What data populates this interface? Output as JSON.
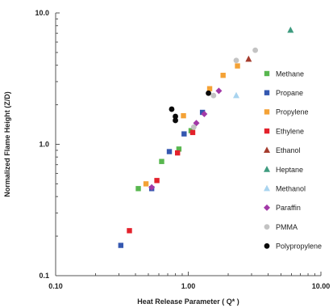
{
  "chart_data": {
    "type": "scatter",
    "x_scale": "log",
    "y_scale": "log",
    "xlim": [
      0.1,
      10
    ],
    "ylim": [
      0.1,
      10
    ],
    "xlabel": "Heat Release Parameter  ( Q* )",
    "ylabel": "Normalized Flame Height (Z/D)",
    "x_ticks": [
      0.1,
      1,
      10
    ],
    "x_tick_labels": [
      "0.10",
      "1.00",
      "10.00"
    ],
    "y_ticks": [
      0.1,
      1,
      10
    ],
    "y_tick_labels": [
      "0.1",
      "1.0",
      "10.0"
    ],
    "grid": false,
    "legend_position": "right",
    "series": [
      {
        "name": "Methane",
        "marker": "square",
        "color": "#58b74f",
        "points": [
          [
            0.42,
            0.46
          ],
          [
            0.63,
            0.74
          ],
          [
            0.85,
            0.92
          ],
          [
            1.05,
            1.27
          ]
        ]
      },
      {
        "name": "Propane",
        "marker": "square",
        "color": "#3558b0",
        "points": [
          [
            0.31,
            0.17
          ],
          [
            0.53,
            0.46
          ],
          [
            0.72,
            0.88
          ],
          [
            0.93,
            1.2
          ],
          [
            1.28,
            1.75
          ]
        ]
      },
      {
        "name": "Propylene",
        "marker": "square",
        "color": "#f4a236",
        "points": [
          [
            0.48,
            0.5
          ],
          [
            0.92,
            1.65
          ],
          [
            1.45,
            2.65
          ],
          [
            1.83,
            3.35
          ],
          [
            2.35,
            3.95
          ]
        ]
      },
      {
        "name": "Ethylene",
        "marker": "square",
        "color": "#e3212b",
        "points": [
          [
            0.36,
            0.22
          ],
          [
            0.58,
            0.53
          ],
          [
            0.83,
            0.86
          ],
          [
            1.08,
            1.23
          ]
        ]
      },
      {
        "name": "Ethanol",
        "marker": "triangle",
        "color": "#a53c2e",
        "points": [
          [
            2.85,
            4.45
          ]
        ]
      },
      {
        "name": "Heptane",
        "marker": "triangle",
        "color": "#3e9b7f",
        "points": [
          [
            5.9,
            7.4
          ]
        ]
      },
      {
        "name": "Methanol",
        "marker": "triangle",
        "color": "#a9d4ef",
        "points": [
          [
            2.3,
            2.35
          ]
        ]
      },
      {
        "name": "Paraffin",
        "marker": "diamond",
        "color": "#a239a7",
        "points": [
          [
            0.53,
            0.47
          ],
          [
            1.15,
            1.45
          ],
          [
            1.32,
            1.7
          ],
          [
            1.7,
            2.55
          ]
        ]
      },
      {
        "name": "PMMA",
        "marker": "circle",
        "color": "#c3c3c3",
        "points": [
          [
            1.1,
            1.35
          ],
          [
            1.55,
            2.35
          ],
          [
            2.3,
            4.35
          ],
          [
            3.2,
            5.2
          ]
        ]
      },
      {
        "name": "Polypropylene",
        "marker": "circle",
        "color": "#0a0a0a",
        "points": [
          [
            0.75,
            1.85
          ],
          [
            0.8,
            1.63
          ],
          [
            0.8,
            1.52
          ],
          [
            1.42,
            2.45
          ]
        ]
      }
    ]
  }
}
